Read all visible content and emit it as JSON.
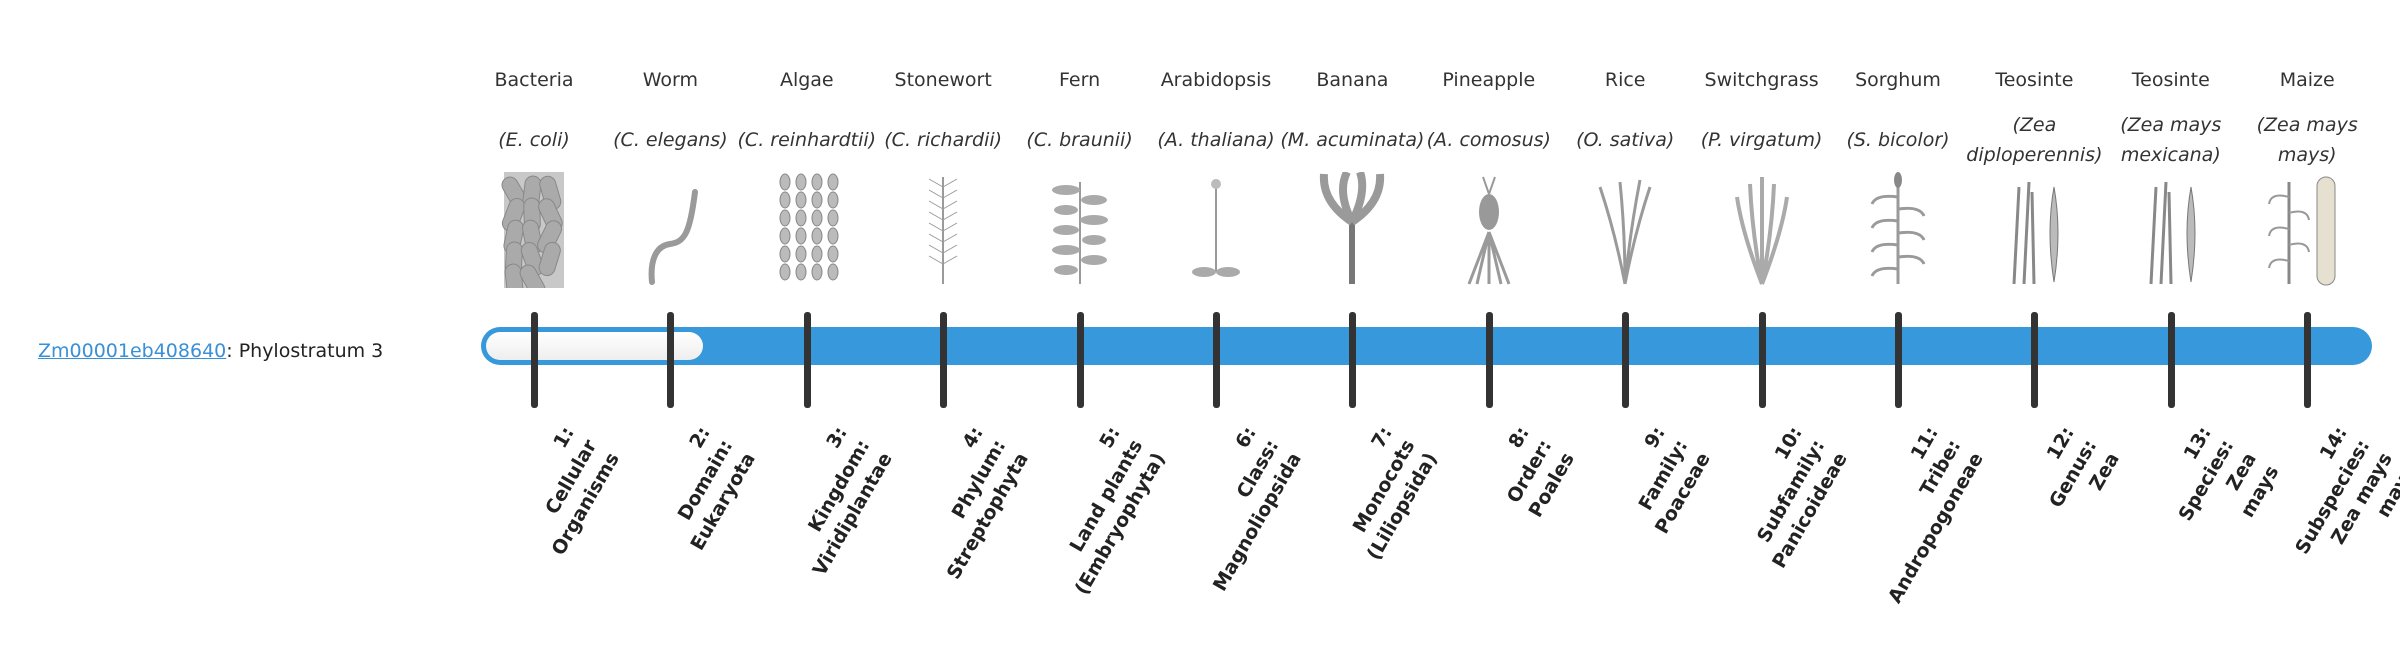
{
  "gene": {
    "id": "Zm00001eb408640",
    "suffix": ": Phylostratum 3"
  },
  "progress": {
    "phylostratum": 3,
    "total": 14
  },
  "colors": {
    "bar": "#3799db",
    "link": "#3a8fd6",
    "tick": "#333333"
  },
  "strata": [
    {
      "common": "Bacteria",
      "sci": "(E. coli)",
      "icon": "bacteria-icon",
      "rank": [
        "1:",
        "Cellular",
        "Organisms"
      ]
    },
    {
      "common": "Worm",
      "sci": "(C. elegans)",
      "icon": "worm-icon",
      "rank": [
        "2:",
        "Domain:",
        "Eukaryota"
      ]
    },
    {
      "common": "Algae",
      "sci": "(C. reinhardtii)",
      "icon": "algae-icon",
      "rank": [
        "3:",
        "Kingdom:",
        "Viridiplantae"
      ]
    },
    {
      "common": "Stonewort",
      "sci": "(C. richardii)",
      "icon": "stonewort-icon",
      "rank": [
        "4:",
        "Phylum:",
        "Streptophyta"
      ]
    },
    {
      "common": "Fern",
      "sci": "(C. braunii)",
      "icon": "fern-icon",
      "rank": [
        "5:",
        "Land plants",
        "(Embryophyta)"
      ]
    },
    {
      "common": "Arabidopsis",
      "sci": "(A. thaliana)",
      "icon": "arabidopsis-icon",
      "rank": [
        "6:",
        "Class:",
        "Magnoliopsida"
      ]
    },
    {
      "common": "Banana",
      "sci": "(M. acuminata)",
      "icon": "banana-icon",
      "rank": [
        "7:",
        "Monocots",
        "(Liliopsida)"
      ]
    },
    {
      "common": "Pineapple",
      "sci": "(A. comosus)",
      "icon": "pineapple-icon",
      "rank": [
        "8:",
        "Order:",
        "Poales"
      ]
    },
    {
      "common": "Rice",
      "sci": "(O. sativa)",
      "icon": "rice-icon",
      "rank": [
        "9:",
        "Family:",
        "Poaceae"
      ]
    },
    {
      "common": "Switchgrass",
      "sci": "(P. virgatum)",
      "icon": "switchgrass-icon",
      "rank": [
        "10:",
        "Subfamily:",
        "Panicoideae"
      ]
    },
    {
      "common": "Sorghum",
      "sci": "(S. bicolor)",
      "icon": "sorghum-icon",
      "rank": [
        "11:",
        "Tribe:",
        "Andropogoneae"
      ]
    },
    {
      "common": "Teosinte",
      "sci": "(Zea diploperennis)",
      "icon": "teosinte-icon",
      "rank": [
        "12:",
        "Genus:",
        "Zea"
      ]
    },
    {
      "common": "Teosinte",
      "sci": "(Zea mays mexicana)",
      "icon": "teosinte-icon",
      "rank": [
        "13:",
        "Species:",
        "Zea",
        "mays"
      ]
    },
    {
      "common": "Maize",
      "sci": "(Zea mays mays)",
      "icon": "maize-icon",
      "rank": [
        "14:",
        "Subspecies:",
        "Zea mays",
        "mays"
      ]
    }
  ]
}
